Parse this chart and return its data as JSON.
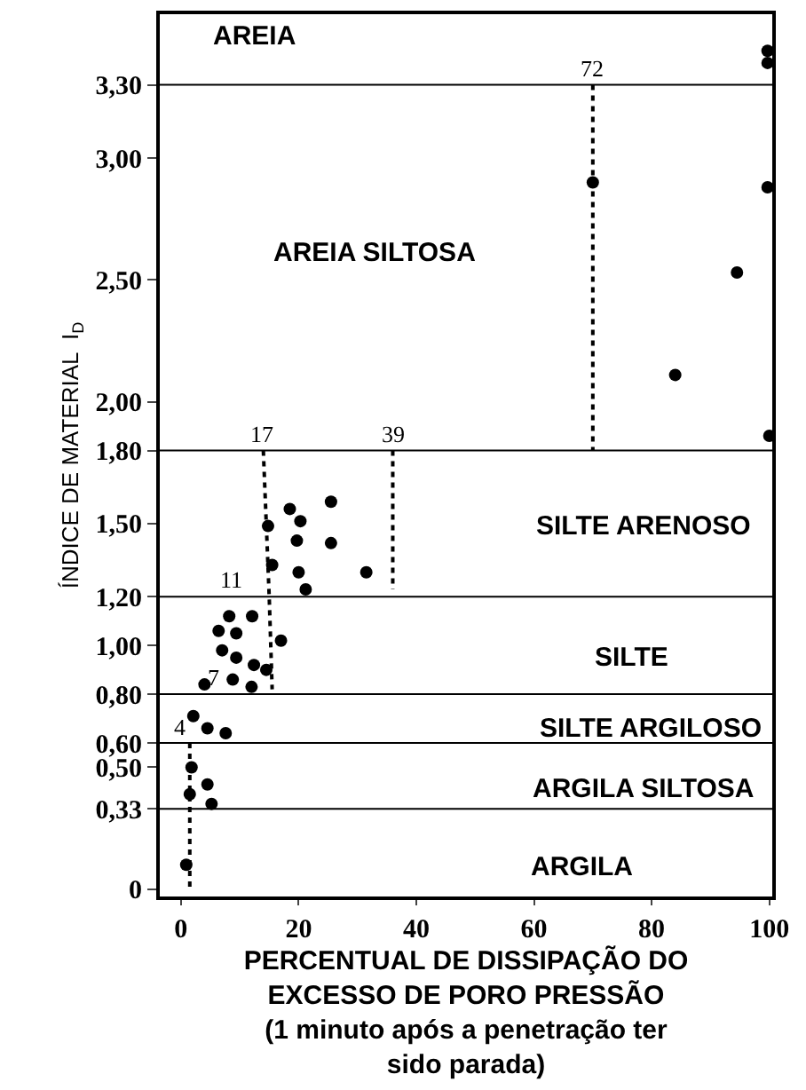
{
  "chart_data": {
    "type": "scatter",
    "xlabel": "PERCENTUAL DE DISSIPAÇÃO DO\nEXCESSO DE PORO PRESSÃO\n(1 minuto após a penetração ter\nsido parada)",
    "ylabel": "ÍNDICE DE MATERIAL  I$_{D}$",
    "xlim": [
      -3.6,
      100.5
    ],
    "ylim": [
      -0.03,
      3.59
    ],
    "xticks": [
      0,
      20,
      40,
      60,
      80,
      100
    ],
    "yticks": [
      {
        "value": 0,
        "label": "0"
      },
      {
        "value": 0.33,
        "label": "0,33"
      },
      {
        "value": 0.5,
        "label": "0,50"
      },
      {
        "value": 0.6,
        "label": "0,60"
      },
      {
        "value": 0.8,
        "label": "0,80"
      },
      {
        "value": 1,
        "label": "1,00"
      },
      {
        "value": 1.2,
        "label": "1,20"
      },
      {
        "value": 1.5,
        "label": "1,50"
      },
      {
        "value": 1.8,
        "label": "1,80"
      },
      {
        "value": 2,
        "label": "2,00"
      },
      {
        "value": 2.5,
        "label": "2,50"
      },
      {
        "value": 3,
        "label": "3,00"
      },
      {
        "value": 3.3,
        "label": "3,30"
      }
    ],
    "grid": false,
    "marker": "circle",
    "series": [
      {
        "color": "#000000",
        "x": [
          25.5,
          18.5,
          20.3,
          14.8,
          19.7,
          25.5,
          15.5,
          20,
          31.5,
          21.2,
          8.2,
          12.1,
          6.4,
          9.4,
          17,
          7,
          9.4,
          12.4,
          4,
          8.8,
          12,
          14.5,
          2.1,
          4.5,
          7.6,
          1.8,
          4.5,
          1.5,
          5.2,
          0.9,
          99.7,
          99.7,
          70,
          99.7,
          94.5,
          84,
          100
        ],
        "values": [
          1.59,
          1.56,
          1.51,
          1.49,
          1.43,
          1.42,
          1.33,
          1.3,
          1.3,
          1.23,
          1.12,
          1.12,
          1.06,
          1.05,
          1.02,
          0.98,
          0.95,
          0.92,
          0.84,
          0.86,
          0.83,
          0.9,
          0.71,
          0.66,
          0.64,
          0.5,
          0.43,
          0.39,
          0.35,
          0.1,
          3.44,
          3.39,
          2.9,
          2.88,
          2.53,
          2.11,
          1.86
        ]
      },
      {
        "type": "line",
        "color": "#000000",
        "line_style": "dotted",
        "marker": "none",
        "x": [
          70,
          70
        ],
        "values": [
          3.3,
          1.8
        ]
      },
      {
        "type": "line",
        "color": "#000000",
        "line_style": "dotted",
        "marker": "none",
        "x": [
          36,
          36
        ],
        "values": [
          1.8,
          1.23
        ]
      },
      {
        "type": "line",
        "color": "#000000",
        "line_style": "dotted",
        "marker": "none",
        "x": [
          14,
          15,
          15.5
        ],
        "values": [
          1.8,
          1.2,
          0.82
        ]
      },
      {
        "type": "line",
        "color": "#000000",
        "line_style": "dotted",
        "marker": "none",
        "x": [
          1.5,
          1.5
        ],
        "values": [
          0.6,
          0
        ]
      }
    ],
    "ref_lines": [
      {
        "axis": "y",
        "value": 3.3,
        "color": "#000000"
      },
      {
        "axis": "y",
        "value": 1.8,
        "color": "#000000"
      },
      {
        "axis": "y",
        "value": 1.2,
        "color": "#000000"
      },
      {
        "axis": "y",
        "value": 0.8,
        "color": "#000000"
      },
      {
        "axis": "y",
        "value": 0.6,
        "color": "#000000"
      },
      {
        "axis": "y",
        "value": 0.33,
        "color": "#000000"
      }
    ],
    "annotations": [
      "AREIA",
      "AREIA SILTOSA",
      "SILTE ARENOSO",
      "SILTE",
      "SILTE ARGILOSO",
      "ARGILA SILTOSA",
      "ARGILA",
      {
        "text": "72",
        "x": 70,
        "y": 3.3
      },
      {
        "text": "39",
        "x": 36,
        "y": 1.8
      },
      {
        "text": "17",
        "x": 14,
        "y": 1.8
      },
      {
        "text": "11",
        "x": 8.5,
        "y": 1.2
      },
      {
        "text": "7",
        "x": 5.5,
        "y": 0.8
      },
      {
        "text": "4",
        "x": 0,
        "y": 0.6
      }
    ]
  }
}
